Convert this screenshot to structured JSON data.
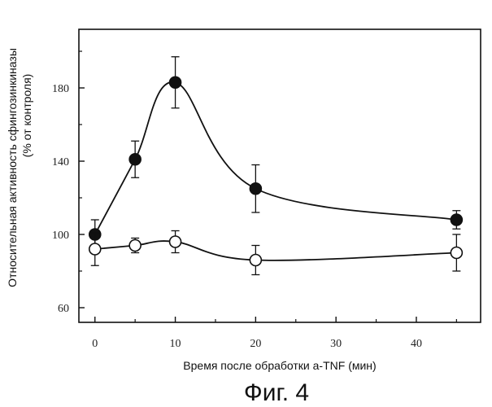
{
  "chart_data": {
    "type": "line",
    "title": "",
    "xlabel": "Время после обработки a-TNF (мин)",
    "ylabel_line1": "Относительная активность сфингозинкиназы",
    "ylabel_line2": "(% от контроля)",
    "caption": "Фиг. 4",
    "xlim": [
      -2,
      48
    ],
    "ylim": [
      52,
      212
    ],
    "xticks": [
      0,
      10,
      20,
      30,
      40
    ],
    "xtick_labels": [
      "0",
      "10",
      "20",
      "30",
      "40"
    ],
    "yticks": [
      60,
      100,
      140,
      180
    ],
    "ytick_labels": [
      "60",
      "100",
      "140",
      "180"
    ],
    "grid": false,
    "legend": "none",
    "series": [
      {
        "marker": "filled-circle",
        "color": "#111111",
        "x": [
          0,
          5,
          10,
          20,
          45
        ],
        "y": [
          100,
          141,
          183,
          125,
          108
        ],
        "err": [
          8,
          10,
          14,
          13,
          5
        ]
      },
      {
        "marker": "open-circle",
        "color": "#111111",
        "x": [
          0,
          5,
          10,
          20,
          45
        ],
        "y": [
          92,
          94,
          96,
          86,
          90
        ],
        "err": [
          9,
          4,
          6,
          8,
          10
        ]
      }
    ]
  }
}
